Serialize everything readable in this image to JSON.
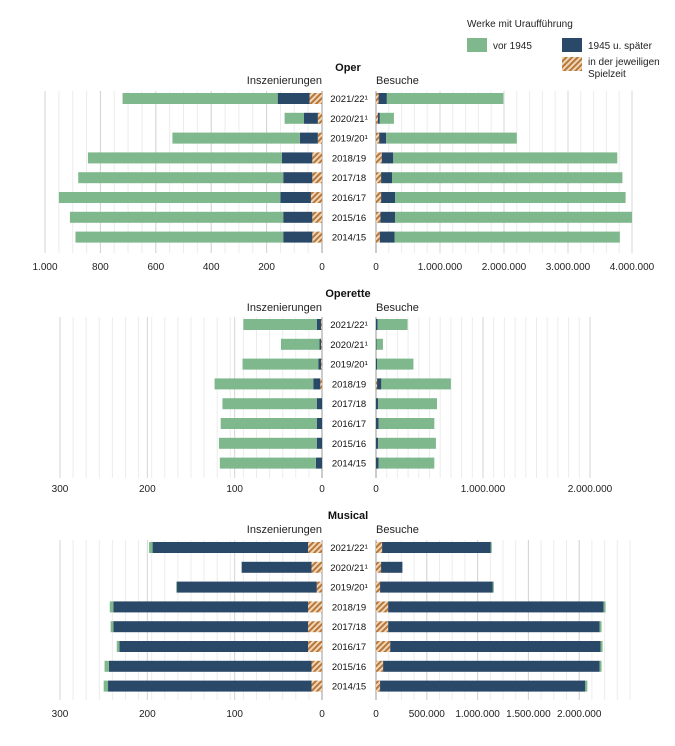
{
  "legend": {
    "title": "Werke mit Uraufführung",
    "items": [
      {
        "key": "pre1945",
        "label": "vor 1945",
        "color": "#7fb88c"
      },
      {
        "key": "post1945",
        "label": "1945 u. später",
        "color": "#2a4868"
      },
      {
        "key": "same_season",
        "label": "in der jeweiligen Spielzeit",
        "label_lines": [
          "in der jeweiligen",
          "Spielzeit"
        ],
        "color": "#b8773a"
      }
    ]
  },
  "seasons": [
    "2021/22¹",
    "2020/21¹",
    "2019/20¹",
    "2018/19",
    "2017/18",
    "2016/17",
    "2015/16",
    "2014/15"
  ],
  "chart_data": [
    {
      "type": "bar",
      "title": "Oper",
      "left_label": "Inszenierungen",
      "right_label": "Besuche",
      "left_ticks": [
        0,
        200,
        400,
        600,
        800,
        1000
      ],
      "left_tick_labels": [
        "0",
        "200",
        "400",
        "600",
        "800",
        "1.000"
      ],
      "left_max": 1000,
      "right_ticks": [
        0,
        1000000,
        2000000,
        3000000,
        4000000
      ],
      "right_tick_labels": [
        "0",
        "1.000.000",
        "2.000.000",
        "3.000.000",
        "4.000.000"
      ],
      "right_max": 4000000,
      "left_series": [
        {
          "name": "vor 1945",
          "values": [
            560,
            70,
            460,
            700,
            740,
            800,
            770,
            750
          ]
        },
        {
          "name": "1945 u. später",
          "values": [
            115,
            50,
            65,
            110,
            105,
            110,
            105,
            105
          ]
        },
        {
          "name": "in der jeweiligen Spielzeit",
          "values": [
            45,
            15,
            15,
            35,
            35,
            40,
            35,
            35
          ]
        }
      ],
      "right_series": [
        {
          "name": "vor 1945",
          "values": [
            1820000,
            220000,
            2040000,
            3500000,
            3600000,
            3600000,
            3700000,
            3520000
          ]
        },
        {
          "name": "1945 u. später",
          "values": [
            130000,
            30000,
            110000,
            180000,
            170000,
            220000,
            230000,
            230000
          ]
        },
        {
          "name": "in der jeweiligen Spielzeit",
          "values": [
            40000,
            30000,
            50000,
            90000,
            80000,
            80000,
            70000,
            60000
          ]
        }
      ]
    },
    {
      "type": "bar",
      "title": "Operette",
      "left_label": "Inszenierungen",
      "right_label": "Besuche",
      "left_ticks": [
        0,
        100,
        200,
        300
      ],
      "left_tick_labels": [
        "0",
        "100",
        "200",
        "300"
      ],
      "left_max": 300,
      "right_ticks": [
        0,
        1000000,
        2000000
      ],
      "right_tick_labels": [
        "0",
        "1.000.000",
        "2.000.000"
      ],
      "right_max": 2000000,
      "left_series": [
        {
          "name": "vor 1945",
          "values": [
            84,
            44,
            87,
            113,
            108,
            110,
            112,
            110
          ]
        },
        {
          "name": "1945 u. später",
          "values": [
            5,
            2,
            3,
            8,
            6,
            6,
            6,
            7
          ]
        },
        {
          "name": "in der jeweiligen Spielzeit",
          "values": [
            1,
            1,
            1,
            2,
            0,
            0,
            0,
            0
          ]
        }
      ],
      "right_series": [
        {
          "name": "vor 1945",
          "values": [
            280000,
            60000,
            340000,
            650000,
            550000,
            520000,
            540000,
            520000
          ]
        },
        {
          "name": "1945 u. später",
          "values": [
            15000,
            5000,
            10000,
            40000,
            20000,
            25000,
            20000,
            25000
          ]
        },
        {
          "name": "in der jeweiligen Spielzeit",
          "values": [
            0,
            0,
            0,
            10000,
            0,
            0,
            0,
            0
          ]
        }
      ]
    },
    {
      "type": "bar",
      "title": "Musical",
      "left_label": "Inszenierungen",
      "right_label": "Besuche",
      "left_ticks": [
        0,
        100,
        200,
        300
      ],
      "left_tick_labels": [
        "0",
        "100",
        "200",
        "300"
      ],
      "left_max": 300,
      "right_ticks": [
        0,
        500000,
        1000000,
        1500000,
        2000000
      ],
      "right_tick_labels": [
        "0",
        "500.000",
        "1.000.000",
        "1.500.000",
        "2.000.000"
      ],
      "right_max": 2500000,
      "left_series": [
        {
          "name": "vor 1945",
          "values": [
            4,
            0,
            1,
            4,
            3,
            3,
            5,
            5
          ]
        },
        {
          "name": "1945 u. später",
          "values": [
            178,
            80,
            160,
            223,
            223,
            216,
            232,
            233
          ]
        },
        {
          "name": "in der jeweiligen Spielzeit",
          "values": [
            16,
            12,
            6,
            16,
            16,
            16,
            12,
            12
          ]
        }
      ],
      "right_series": [
        {
          "name": "vor 1945",
          "values": [
            10000,
            0,
            10000,
            20000,
            20000,
            20000,
            20000,
            20000
          ]
        },
        {
          "name": "1945 u. später",
          "values": [
            1070000,
            210000,
            1110000,
            2120000,
            2080000,
            2070000,
            2130000,
            2020000
          ]
        },
        {
          "name": "in der jeweiligen Spielzeit",
          "values": [
            60000,
            50000,
            40000,
            120000,
            120000,
            140000,
            70000,
            40000
          ]
        }
      ]
    }
  ]
}
